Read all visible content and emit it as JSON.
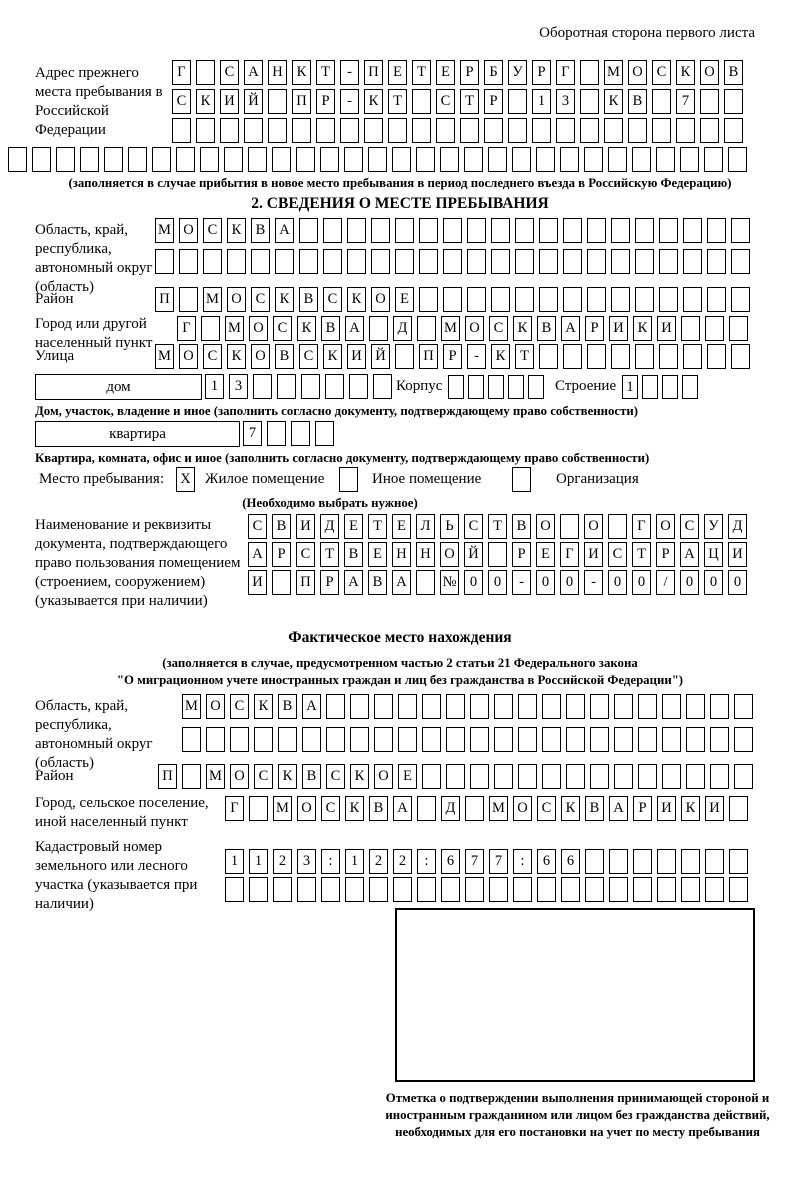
{
  "header": {
    "note": "Оборотная сторона первого листа"
  },
  "section1": {
    "label": "Адрес прежнего места пребывания в Российской Федерации",
    "row1": "Г САНКТ-ПЕТЕРБУРГ МОСКОВ",
    "row2": "СКИЙ ПР-КТ СТР 13 КВ 7",
    "row3": "",
    "row4": "",
    "caption": "(заполняется в случае прибытия в новое место пребывания в период последнего въезда в Российскую Федерацию)"
  },
  "section2": {
    "heading": "2. СВЕДЕНИЯ О МЕСТЕ ПРЕБЫВАНИЯ",
    "oblast_label": "Область, край, республика, автономный округ (область)",
    "oblast_row1": "МОСКВА",
    "oblast_row2": "",
    "raion_label": "Район",
    "raion_row": "П МОСКВСКОЕ",
    "gorod_label": "Город или другой населенный пункт",
    "gorod_row": "Г МОСКВА Д МОСКВАРИКИ",
    "ulitsa_label": "Улица",
    "ulitsa_row": "МОСКОВСКИЙ ПР-КТ",
    "dom_box_label": "дом",
    "dom_value": "13",
    "korpus_label": "Корпус",
    "korpus_value": "",
    "stroenie_label": "Строение",
    "stroenie_value": "1",
    "dom_caption": "Дом, участок, владение и иное (заполнить согласно документу, подтверждающему право собственности)",
    "kvartira_box_label": "квартира",
    "kvartira_value": "7",
    "kvartira_caption": "Квартира, комната, офис и иное (заполнить согласно документу, подтверждающему право собственности)",
    "mesto_label": "Место пребывания:",
    "mesto_zhiloe_value": "X",
    "mesto_zhiloe_label": "Жилое помещение",
    "mesto_inoe_value": "",
    "mesto_inoe_label": "Иное помещение",
    "mesto_org_value": "",
    "mesto_org_label": "Организация",
    "mesto_hint": "(Необходимо выбрать нужное)",
    "doc_label": "Наименование и реквизиты документа, подтверждающего право пользования помещением (строением, сооружением) (указывается при наличии)",
    "doc_row1": "СВИДЕТЕЛЬСТВО О ГОСУД",
    "doc_row2": "АРСТВЕННОЙ РЕГИСТРАЦИ",
    "doc_row3": "И ПРАВА №00-00-00/000"
  },
  "section3": {
    "heading": "Фактическое место нахождения",
    "note1": "(заполняется в случае, предусмотренном частью 2 статьи 21 Федерального закона",
    "note2": "\"О миграционном учете иностранных граждан и лиц без гражданства в Российской Федерации\")",
    "oblast_label": "Область, край, республика, автономный округ (область)",
    "oblast_row1": "МОСКВА",
    "oblast_row2": "",
    "raion_label": "Район",
    "raion_row": "П МОСКВСКОЕ",
    "gorod_label": "Город, сельское поселение, иной населенный пункт",
    "gorod_row": "Г МОСКВА Д МОСКВАРИКИ",
    "kadastr_label": "Кадастровый номер земельного или лесного участка (указывается при наличии)",
    "kadastr_row1": "1123:122:677:66",
    "kadastr_row2": "",
    "stamp_caption": "Отметка о подтверждении выполнения принимающей стороной и иностранным гражданином или лицом без гражданства действий, необходимых для его постановки на учет по месту пребывания"
  }
}
